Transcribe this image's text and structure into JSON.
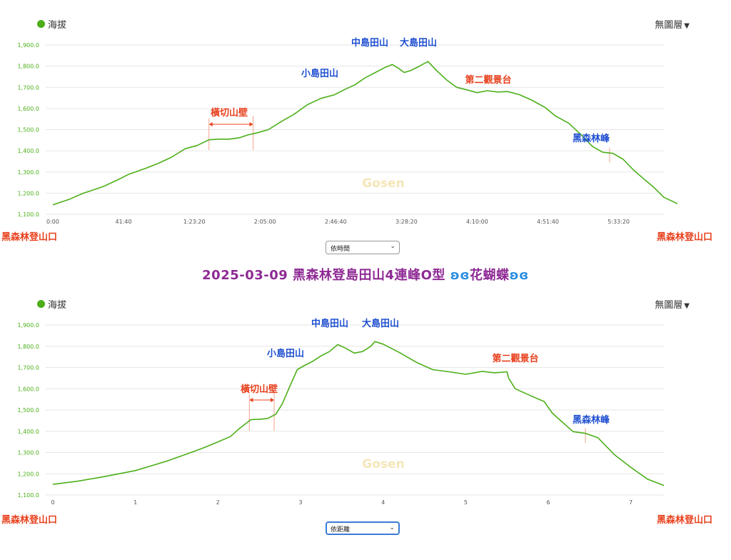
{
  "title": {
    "text": "2025-03-09 黑森林登島田山4連峰O型",
    "icon": "butterfly-icon",
    "suffix": "花蝴蝶"
  },
  "colors": {
    "line": "#4caf1a",
    "blue_label": "#1e4fd1",
    "red_label": "#e8401d",
    "watermark": "#f5e6b8"
  },
  "charts": [
    {
      "legend": "海拔",
      "layer_menu": "無圖層",
      "start_label": "黑森林登山口",
      "end_label": "黑森林登山口",
      "selector": "依時間",
      "watermark": "Gosen",
      "section_label": "橫切山壁",
      "annotations": [
        {
          "text": "中島田山",
          "color": "blue"
        },
        {
          "text": "大島田山",
          "color": "blue"
        },
        {
          "text": "小島田山",
          "color": "blue"
        },
        {
          "text": "第二觀景台",
          "color": "red"
        },
        {
          "text": "黑森林峰",
          "color": "blue"
        }
      ]
    },
    {
      "legend": "海拔",
      "layer_menu": "無圖層",
      "start_label": "黑森林登山口",
      "end_label": "黑森林登山口",
      "selector": "依距離",
      "watermark": "Gosen",
      "section_label": "橫切山壁",
      "annotations": [
        {
          "text": "中島田山",
          "color": "blue"
        },
        {
          "text": "大島田山",
          "color": "blue"
        },
        {
          "text": "小島田山",
          "color": "blue"
        },
        {
          "text": "第二觀景台",
          "color": "red"
        },
        {
          "text": "黑森林峰",
          "color": "blue"
        }
      ]
    }
  ],
  "chart_data": [
    {
      "type": "line",
      "x_axis": "time",
      "series": [
        {
          "name": "海拔",
          "unit": "m"
        }
      ],
      "x_ticks": [
        "0:00",
        "41:40",
        "1:23:20",
        "2:05:00",
        "2:46:40",
        "3:28:20",
        "4:10:00",
        "4:51:40",
        "5:33:20"
      ],
      "x_tick_values": [
        0,
        41.67,
        83.33,
        125,
        166.67,
        208.33,
        250,
        291.67,
        333.33
      ],
      "x_unit": "minutes",
      "y_ticks": [
        "1,100.0",
        "1,200.0",
        "1,300.0",
        "1,400.0",
        "1,500.0",
        "1,600.0",
        "1,700.0",
        "1,800.0",
        "1,900.0"
      ],
      "y_tick_values": [
        1100,
        1200,
        1300,
        1400,
        1500,
        1600,
        1700,
        1800,
        1900
      ],
      "ylim": [
        1100,
        1900
      ],
      "xlim": [
        0,
        360
      ],
      "grid": true,
      "points": [
        [
          0,
          1145
        ],
        [
          10,
          1172
        ],
        [
          18,
          1200
        ],
        [
          22,
          1210
        ],
        [
          30,
          1232
        ],
        [
          38,
          1262
        ],
        [
          45,
          1290
        ],
        [
          55,
          1318
        ],
        [
          62,
          1340
        ],
        [
          70,
          1370
        ],
        [
          78,
          1410
        ],
        [
          85,
          1425
        ],
        [
          92,
          1452
        ],
        [
          98,
          1455
        ],
        [
          104,
          1455
        ],
        [
          110,
          1462
        ],
        [
          115,
          1475
        ],
        [
          120,
          1484
        ],
        [
          127,
          1500
        ],
        [
          135,
          1540
        ],
        [
          142,
          1572
        ],
        [
          150,
          1618
        ],
        [
          158,
          1648
        ],
        [
          166,
          1665
        ],
        [
          172,
          1690
        ],
        [
          178,
          1712
        ],
        [
          184,
          1745
        ],
        [
          190,
          1770
        ],
        [
          196,
          1795
        ],
        [
          200,
          1808
        ],
        [
          204,
          1788
        ],
        [
          207,
          1770
        ],
        [
          211,
          1780
        ],
        [
          216,
          1800
        ],
        [
          221,
          1822
        ],
        [
          226,
          1780
        ],
        [
          232,
          1735
        ],
        [
          238,
          1700
        ],
        [
          244,
          1688
        ],
        [
          250,
          1675
        ],
        [
          256,
          1684
        ],
        [
          262,
          1678
        ],
        [
          268,
          1680
        ],
        [
          275,
          1665
        ],
        [
          282,
          1640
        ],
        [
          290,
          1605
        ],
        [
          296,
          1565
        ],
        [
          304,
          1530
        ],
        [
          312,
          1470
        ],
        [
          318,
          1420
        ],
        [
          324,
          1393
        ],
        [
          330,
          1388
        ],
        [
          336,
          1360
        ],
        [
          342,
          1310
        ],
        [
          348,
          1268
        ],
        [
          354,
          1228
        ],
        [
          360,
          1180
        ],
        [
          364,
          1165
        ],
        [
          368,
          1150
        ]
      ],
      "markers": [
        {
          "label": "橫切山壁",
          "x_start": 92,
          "x_end": 118
        },
        {
          "label": "黑森林峰",
          "x": 328
        }
      ]
    },
    {
      "type": "line",
      "x_axis": "distance",
      "series": [
        {
          "name": "海拔",
          "unit": "m"
        }
      ],
      "x_ticks": [
        "0",
        "1",
        "2",
        "3",
        "4",
        "5",
        "6",
        "7"
      ],
      "x_tick_values": [
        0,
        1,
        2,
        3,
        4,
        5,
        6,
        7
      ],
      "x_unit": "km",
      "y_ticks": [
        "1,100.0",
        "1,200.0",
        "1,300.0",
        "1,400.0",
        "1,500.0",
        "1,600.0",
        "1,700.0",
        "1,800.0",
        "1,900.0"
      ],
      "y_tick_values": [
        1100,
        1200,
        1300,
        1400,
        1500,
        1600,
        1700,
        1800,
        1900
      ],
      "ylim": [
        1100,
        1900
      ],
      "xlim": [
        0,
        7.4
      ],
      "grid": true,
      "points": [
        [
          0,
          1150
        ],
        [
          0.3,
          1165
        ],
        [
          0.6,
          1185
        ],
        [
          0.8,
          1200
        ],
        [
          1.0,
          1215
        ],
        [
          1.2,
          1238
        ],
        [
          1.4,
          1262
        ],
        [
          1.6,
          1290
        ],
        [
          1.8,
          1318
        ],
        [
          2.0,
          1350
        ],
        [
          2.15,
          1375
        ],
        [
          2.25,
          1410
        ],
        [
          2.35,
          1440
        ],
        [
          2.4,
          1455
        ],
        [
          2.5,
          1456
        ],
        [
          2.6,
          1460
        ],
        [
          2.7,
          1480
        ],
        [
          2.78,
          1530
        ],
        [
          2.88,
          1620
        ],
        [
          2.96,
          1690
        ],
        [
          3.05,
          1710
        ],
        [
          3.15,
          1730
        ],
        [
          3.25,
          1755
        ],
        [
          3.35,
          1775
        ],
        [
          3.45,
          1808
        ],
        [
          3.55,
          1790
        ],
        [
          3.65,
          1768
        ],
        [
          3.75,
          1775
        ],
        [
          3.85,
          1800
        ],
        [
          3.9,
          1822
        ],
        [
          4.0,
          1810
        ],
        [
          4.2,
          1770
        ],
        [
          4.4,
          1725
        ],
        [
          4.6,
          1690
        ],
        [
          4.8,
          1680
        ],
        [
          5.0,
          1668
        ],
        [
          5.2,
          1682
        ],
        [
          5.35,
          1675
        ],
        [
          5.5,
          1680
        ],
        [
          5.52,
          1650
        ],
        [
          5.6,
          1600
        ],
        [
          5.8,
          1565
        ],
        [
          5.95,
          1540
        ],
        [
          6.05,
          1485
        ],
        [
          6.15,
          1450
        ],
        [
          6.3,
          1398
        ],
        [
          6.45,
          1390
        ],
        [
          6.6,
          1370
        ],
        [
          6.8,
          1290
        ],
        [
          7.0,
          1230
        ],
        [
          7.2,
          1175
        ],
        [
          7.4,
          1145
        ]
      ],
      "markers": [
        {
          "label": "橫切山壁",
          "x_start": 2.38,
          "x_end": 2.68
        },
        {
          "label": "黑森林峰",
          "x": 6.45
        }
      ]
    }
  ]
}
